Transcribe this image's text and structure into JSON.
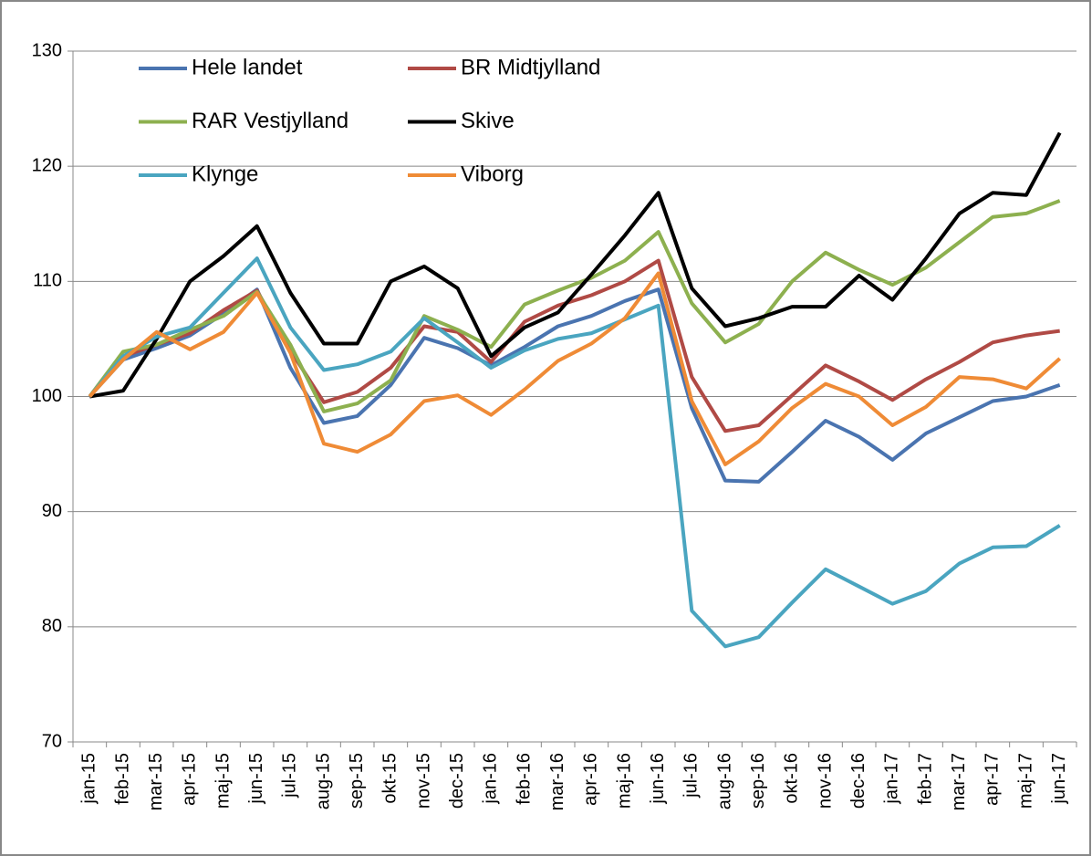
{
  "chart_data": {
    "type": "line",
    "categories": [
      "jan-15",
      "feb-15",
      "mar-15",
      "apr-15",
      "maj-15",
      "jun-15",
      "jul-15",
      "aug-15",
      "sep-15",
      "okt-15",
      "nov-15",
      "dec-15",
      "jan-16",
      "feb-16",
      "mar-16",
      "apr-16",
      "maj-16",
      "jun-16",
      "jul-16",
      "aug-16",
      "sep-16",
      "okt-16",
      "nov-16",
      "dec-16",
      "jan-17",
      "feb-17",
      "mar-17",
      "apr-17",
      "maj-17",
      "jun-17"
    ],
    "series": [
      {
        "name": "Hele landet",
        "color": "#4a74b0",
        "values": [
          100,
          103.2,
          104.2,
          105.3,
          107.2,
          109.3,
          102.5,
          97.7,
          98.3,
          101,
          105.1,
          104.2,
          102.7,
          104.3,
          106.1,
          107,
          108.3,
          109.3,
          99,
          92.7,
          92.6,
          95.2,
          97.9,
          96.5,
          94.5,
          96.8,
          98.2,
          99.6,
          100,
          101
        ]
      },
      {
        "name": "BR Midtjylland",
        "color": "#b04a45",
        "values": [
          100,
          103.5,
          104.5,
          105.5,
          107.5,
          109.2,
          104,
          99.5,
          100.4,
          102.5,
          106.1,
          105.6,
          103,
          106.5,
          107.9,
          108.8,
          110,
          111.8,
          101.7,
          97,
          97.5,
          100.1,
          102.7,
          101.3,
          99.7,
          101.5,
          103,
          104.7,
          105.3,
          105.7
        ]
      },
      {
        "name": "RAR Vestjylland",
        "color": "#8db04f",
        "values": [
          100,
          103.9,
          104.5,
          105.8,
          107,
          109.1,
          104.5,
          98.7,
          99.4,
          101.4,
          107,
          105.8,
          104.3,
          108,
          109.2,
          110.3,
          111.8,
          114.3,
          108.1,
          104.7,
          106.3,
          110,
          112.5,
          111,
          109.7,
          111.2,
          113.4,
          115.6,
          115.9,
          117
        ]
      },
      {
        "name": "Skive",
        "color": "#000000",
        "values": [
          100,
          100.5,
          105,
          110,
          112.2,
          114.8,
          109,
          104.6,
          104.6,
          110,
          111.3,
          109.4,
          103.5,
          106,
          107.3,
          110.6,
          114,
          117.7,
          109.4,
          106.1,
          106.8,
          107.8,
          107.8,
          110.5,
          108.4,
          112,
          115.9,
          117.7,
          117.5,
          122.9
        ]
      },
      {
        "name": "Klynge",
        "color": "#4aa5c0",
        "values": [
          100,
          103.5,
          105.2,
          106,
          109,
          112,
          106,
          102.3,
          102.8,
          103.9,
          106.8,
          104.7,
          102.5,
          104,
          105,
          105.5,
          106.7,
          107.9,
          81.4,
          78.3,
          79.1,
          82.1,
          85,
          83.5,
          82,
          83.1,
          85.5,
          86.9,
          87,
          88.8
        ]
      },
      {
        "name": "Viborg",
        "color": "#ef8b36",
        "values": [
          100,
          103.2,
          105.6,
          104.1,
          105.6,
          109,
          103.8,
          95.9,
          95.2,
          96.7,
          99.6,
          100.1,
          98.4,
          100.6,
          103.1,
          104.6,
          106.8,
          110.7,
          99.6,
          94.1,
          96.1,
          99,
          101.1,
          100,
          97.5,
          99.1,
          101.7,
          101.5,
          100.7,
          103.3
        ]
      }
    ],
    "ylim": [
      70,
      130
    ],
    "yticks": [
      70,
      80,
      90,
      100,
      110,
      120,
      130
    ],
    "grid": true,
    "legend": "top-left"
  }
}
